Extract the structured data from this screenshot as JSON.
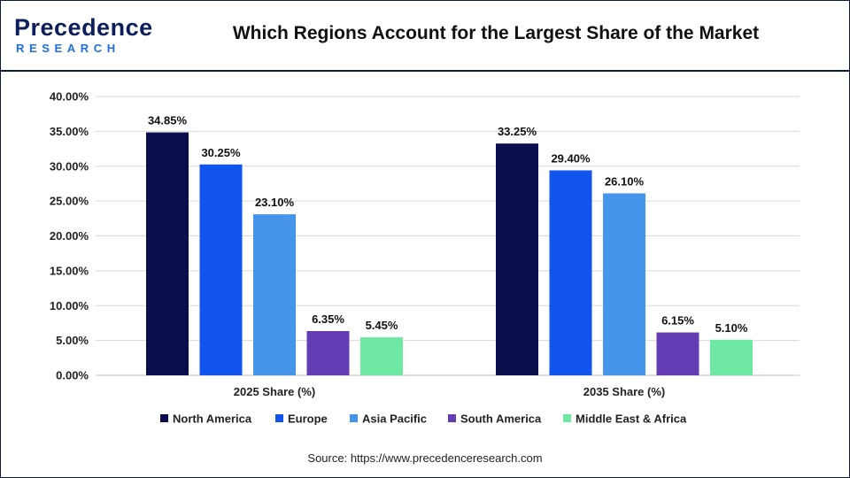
{
  "header": {
    "logo_word": "Precedence",
    "logo_sub": "RESEARCH",
    "title": "Which Regions Account for the Largest Share of the Market"
  },
  "source": "Source: https://www.precedenceresearch.com",
  "colors": {
    "North America": "#0b0e4d",
    "Europe": "#1155ee",
    "Asia Pacific": "#4595ea",
    "South America": "#643db4",
    "Middle East & Africa": "#6fe8a4"
  },
  "chart_data": {
    "type": "bar",
    "title": "Which Regions Account for the Largest Share of the Market",
    "categories": [
      "2025 Share (%)",
      "2035 Share (%)"
    ],
    "series": [
      {
        "name": "North America",
        "values": [
          34.85,
          33.25
        ],
        "labels": [
          "34.85%",
          "33.25%"
        ]
      },
      {
        "name": "Europe",
        "values": [
          30.25,
          29.4
        ],
        "labels": [
          "30.25%",
          "29.40%"
        ]
      },
      {
        "name": "Asia Pacific",
        "values": [
          23.1,
          26.1
        ],
        "labels": [
          "23.10%",
          "26.10%"
        ]
      },
      {
        "name": "South America",
        "values": [
          6.35,
          6.15
        ],
        "labels": [
          "6.35%",
          "6.15%"
        ]
      },
      {
        "name": "Middle East & Africa",
        "values": [
          5.45,
          5.1
        ],
        "labels": [
          "5.45%",
          "5.10%"
        ]
      }
    ],
    "yticks": [
      "0.00%",
      "5.00%",
      "10.00%",
      "15.00%",
      "20.00%",
      "25.00%",
      "30.00%",
      "35.00%",
      "40.00%"
    ],
    "ylim": [
      0,
      40
    ],
    "xlabel": "",
    "ylabel": "",
    "grid": true,
    "legend": "bottom"
  }
}
